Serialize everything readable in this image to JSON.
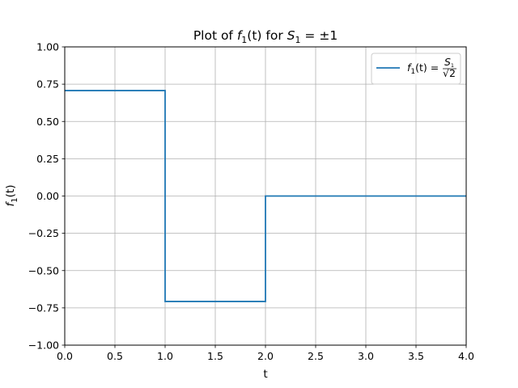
{
  "chart_data": {
    "type": "line",
    "title": "Plot of f₁(t) for S₁ = ±1",
    "title_parts": {
      "prefix": "Plot of ",
      "func": "f",
      "sub": "1",
      "arg": "(t)",
      "middle": " for ",
      "var": "S",
      "var_sub": "1",
      "suffix": " = ±1"
    },
    "xlabel": "t",
    "ylabel": {
      "func": "f",
      "sub": "1",
      "arg": "(t)"
    },
    "xlim": [
      0.0,
      4.0
    ],
    "ylim": [
      -1.0,
      1.0
    ],
    "xticks": [
      "0.0",
      "0.5",
      "1.0",
      "1.5",
      "2.0",
      "2.5",
      "3.0",
      "3.5",
      "4.0"
    ],
    "yticks": [
      "−1.00",
      "−0.75",
      "−0.50",
      "−0.25",
      "0.00",
      "0.25",
      "0.50",
      "0.75",
      "1.00"
    ],
    "grid": true,
    "legend_placement": "top-right",
    "series": [
      {
        "name": "f₁(t) = S₁/√2",
        "legend_parts": {
          "func": "f",
          "sub": "1",
          "arg": "(t) = ",
          "num": "S",
          "num_sub": "1",
          "den": "√2"
        },
        "color": "#1f77b4",
        "x": [
          0.0,
          1.0,
          1.0,
          2.0,
          2.0,
          4.0
        ],
        "y": [
          0.7071,
          0.7071,
          -0.7071,
          -0.7071,
          0.0,
          0.0
        ]
      }
    ]
  }
}
